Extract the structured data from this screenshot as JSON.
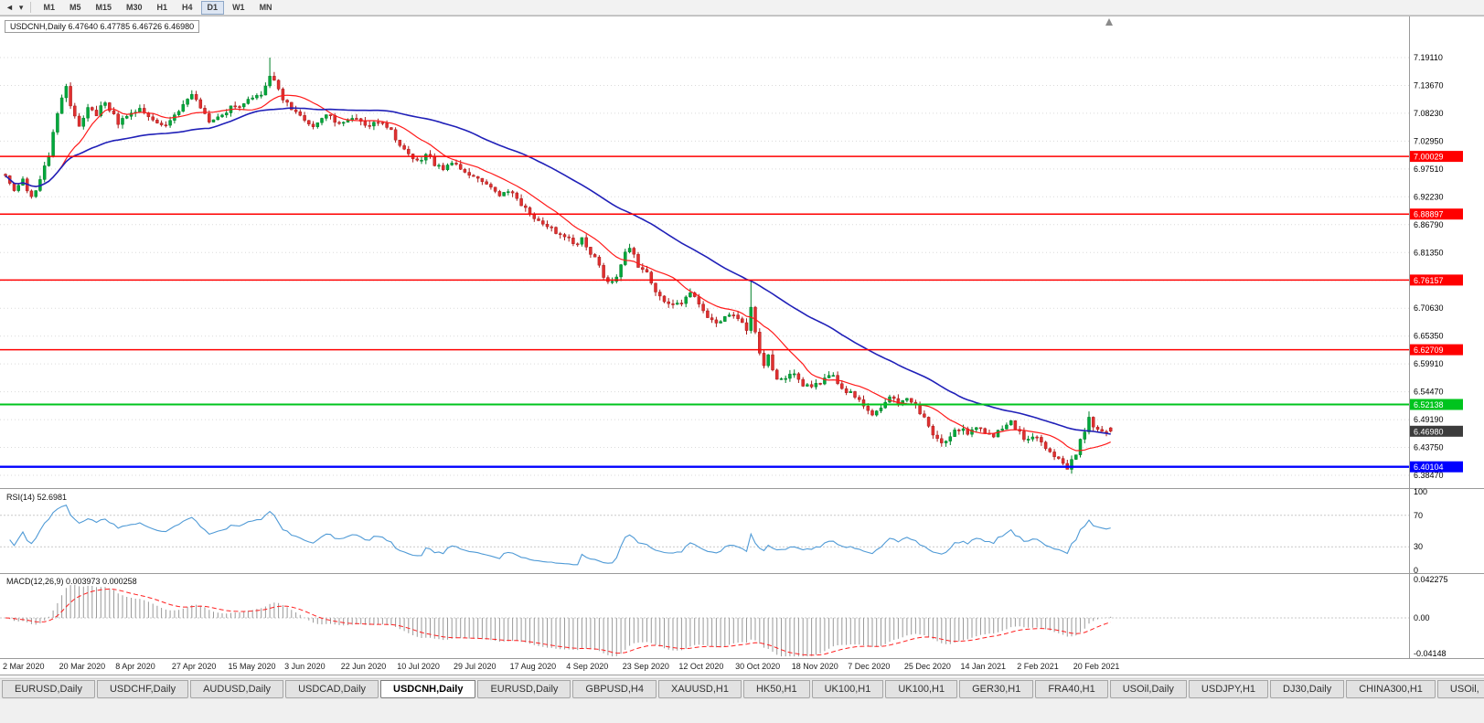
{
  "toolbar": {
    "timeframes": [
      "M1",
      "M5",
      "M15",
      "M30",
      "H1",
      "H4",
      "D1",
      "W1",
      "MN"
    ],
    "active_timeframe": "D1"
  },
  "chart_data": {
    "type": "candlestick",
    "title": "USDCNH,Daily 6.47640 6.47785 6.46726 6.46980",
    "symbol": "USDCNH",
    "period": "Daily",
    "ohlc": {
      "open": 6.4764,
      "high": 6.47785,
      "low": 6.46726,
      "close": 6.4698
    },
    "y_axis_labels": [
      "7.19110",
      "7.13670",
      "7.08230",
      "7.02950",
      "6.97510",
      "6.92230",
      "6.86790",
      "6.81350",
      "6.76060",
      "6.70630",
      "6.65350",
      "6.59910",
      "6.54470",
      "6.49190",
      "6.43750",
      "6.38470"
    ],
    "y_axis_top": 7.1911,
    "y_axis_bottom": 6.3847,
    "x_axis_labels": [
      "2 Mar 2020",
      "20 Mar 2020",
      "8 Apr 2020",
      "27 Apr 2020",
      "15 May 2020",
      "3 Jun 2020",
      "22 Jun 2020",
      "10 Jul 2020",
      "29 Jul 2020",
      "17 Aug 2020",
      "4 Sep 2020",
      "23 Sep 2020",
      "12 Oct 2020",
      "30 Oct 2020",
      "18 Nov 2020",
      "7 Dec 2020",
      "25 Dec 2020",
      "14 Jan 2021",
      "2 Feb 2021",
      "20 Feb 2021"
    ],
    "candles_per_x_label": 13,
    "candle_count": 256,
    "levels": [
      {
        "label": "7.00029",
        "value": 7.00029,
        "color": "#ff0000"
      },
      {
        "label": "6.88897",
        "value": 6.88897,
        "color": "#ff0000"
      },
      {
        "label": "6.76157",
        "value": 6.76157,
        "color": "#ff0000"
      },
      {
        "label": "6.62709",
        "value": 6.62709,
        "color": "#ff0000"
      },
      {
        "label": "6.52138",
        "value": 6.52138,
        "color": "#00c41e"
      },
      {
        "label": "6.40104",
        "value": 6.40104,
        "color": "#0000ff"
      }
    ],
    "current_price": {
      "label": "6.46980",
      "value": 6.4698,
      "tag_color": "#3c3c3c"
    },
    "colors": {
      "up": "#00a83c",
      "up_stroke": "#008028",
      "down": "#e03030",
      "down_stroke": "#a81c1c",
      "ma_fast": "#ff1a1a",
      "ma_slow": "#2020b8",
      "grid": "#dadada"
    },
    "moving_averages": [
      {
        "period": 13,
        "color_key": "ma_fast"
      },
      {
        "period": 48,
        "color_key": "ma_slow"
      }
    ],
    "price_path": [
      [
        0,
        6.962
      ],
      [
        2,
        6.938
      ],
      [
        4,
        6.952
      ],
      [
        6,
        6.918
      ],
      [
        8,
        6.958
      ],
      [
        10,
        7.005
      ],
      [
        12,
        7.085
      ],
      [
        14,
        7.135
      ],
      [
        15,
        7.1
      ],
      [
        17,
        7.062
      ],
      [
        19,
        7.092
      ],
      [
        21,
        7.082
      ],
      [
        23,
        7.108
      ],
      [
        26,
        7.066
      ],
      [
        28,
        7.078
      ],
      [
        31,
        7.094
      ],
      [
        34,
        7.068
      ],
      [
        36,
        7.056
      ],
      [
        39,
        7.078
      ],
      [
        41,
        7.098
      ],
      [
        43,
        7.122
      ],
      [
        45,
        7.094
      ],
      [
        47,
        7.066
      ],
      [
        50,
        7.079
      ],
      [
        52,
        7.094
      ],
      [
        55,
        7.1
      ],
      [
        57,
        7.112
      ],
      [
        59,
        7.124
      ],
      [
        61,
        7.152
      ],
      [
        62,
        7.142
      ],
      [
        64,
        7.108
      ],
      [
        66,
        7.094
      ],
      [
        68,
        7.076
      ],
      [
        71,
        7.06
      ],
      [
        74,
        7.078
      ],
      [
        77,
        7.068
      ],
      [
        80,
        7.074
      ],
      [
        83,
        7.06
      ],
      [
        86,
        7.068
      ],
      [
        89,
        7.052
      ],
      [
        91,
        7.022
      ],
      [
        93,
        7.0
      ],
      [
        95,
        6.992
      ],
      [
        97,
        7.004
      ],
      [
        99,
        6.986
      ],
      [
        101,
        6.976
      ],
      [
        103,
        6.988
      ],
      [
        105,
        6.974
      ],
      [
        108,
        6.958
      ],
      [
        111,
        6.944
      ],
      [
        114,
        6.926
      ],
      [
        117,
        6.93
      ],
      [
        119,
        6.908
      ],
      [
        122,
        6.884
      ],
      [
        125,
        6.868
      ],
      [
        127,
        6.854
      ],
      [
        129,
        6.846
      ],
      [
        131,
        6.83
      ],
      [
        133,
        6.84
      ],
      [
        135,
        6.814
      ],
      [
        137,
        6.788
      ],
      [
        139,
        6.756
      ],
      [
        141,
        6.772
      ],
      [
        143,
        6.814
      ],
      [
        144,
        6.824
      ],
      [
        146,
        6.79
      ],
      [
        148,
        6.774
      ],
      [
        150,
        6.744
      ],
      [
        152,
        6.72
      ],
      [
        154,
        6.71
      ],
      [
        156,
        6.716
      ],
      [
        158,
        6.734
      ],
      [
        160,
        6.718
      ],
      [
        162,
        6.694
      ],
      [
        164,
        6.676
      ],
      [
        166,
        6.69
      ],
      [
        168,
        6.698
      ],
      [
        170,
        6.678
      ],
      [
        171,
        6.66
      ],
      [
        172,
        6.708
      ],
      [
        173,
        6.658
      ],
      [
        174,
        6.618
      ],
      [
        175,
        6.6
      ],
      [
        176,
        6.612
      ],
      [
        177,
        6.586
      ],
      [
        178,
        6.566
      ],
      [
        180,
        6.572
      ],
      [
        182,
        6.578
      ],
      [
        184,
        6.56
      ],
      [
        186,
        6.552
      ],
      [
        188,
        6.566
      ],
      [
        190,
        6.58
      ],
      [
        192,
        6.566
      ],
      [
        194,
        6.546
      ],
      [
        196,
        6.536
      ],
      [
        198,
        6.522
      ],
      [
        200,
        6.506
      ],
      [
        202,
        6.52
      ],
      [
        204,
        6.536
      ],
      [
        206,
        6.526
      ],
      [
        208,
        6.538
      ],
      [
        210,
        6.52
      ],
      [
        212,
        6.492
      ],
      [
        214,
        6.462
      ],
      [
        216,
        6.442
      ],
      [
        218,
        6.462
      ],
      [
        220,
        6.476
      ],
      [
        222,
        6.466
      ],
      [
        224,
        6.48
      ],
      [
        226,
        6.47
      ],
      [
        228,
        6.456
      ],
      [
        230,
        6.478
      ],
      [
        232,
        6.49
      ],
      [
        234,
        6.466
      ],
      [
        236,
        6.452
      ],
      [
        238,
        6.458
      ],
      [
        240,
        6.44
      ],
      [
        242,
        6.418
      ],
      [
        244,
        6.406
      ],
      [
        245,
        6.401
      ],
      [
        247,
        6.428
      ],
      [
        248,
        6.452
      ],
      [
        249,
        6.468
      ],
      [
        250,
        6.498
      ],
      [
        251,
        6.476
      ],
      [
        252,
        6.468
      ],
      [
        253,
        6.474
      ],
      [
        254,
        6.471
      ],
      [
        255,
        6.4698
      ]
    ],
    "wick_spikes": [
      {
        "i": 61,
        "high": 7.1911
      },
      {
        "i": 172,
        "high": 6.7615
      },
      {
        "i": 245,
        "low": 6.3985
      },
      {
        "i": 250,
        "high": 6.508
      }
    ],
    "indicators": {
      "rsi": {
        "title": "RSI(14) 52.6981",
        "period": 14,
        "value": 52.6981,
        "axis_labels": [
          "100",
          "70",
          "30",
          "0"
        ],
        "axis_values": [
          100,
          70,
          30,
          0
        ],
        "level_lines": [
          70,
          30
        ],
        "line_color": "#4f9ad6"
      },
      "macd": {
        "title": "MACD(12,26,9) 0.003973 0.000258",
        "fast": 12,
        "slow": 26,
        "signal": 9,
        "values": [
          0.003973,
          0.000258
        ],
        "axis_labels": [
          "0.042275",
          "0.00",
          "-0.04148"
        ],
        "axis_values": [
          0.042275,
          0,
          -0.04148
        ],
        "histogram_color": "#9a9a9a",
        "signal_color": "#ff2020"
      }
    }
  },
  "tabs": {
    "items": [
      "EURUSD,Daily",
      "USDCHF,Daily",
      "AUDUSD,Daily",
      "USDCAD,Daily",
      "USDCNH,Daily",
      "EURUSD,Daily",
      "GBPUSD,H4",
      "XAUUSD,H1",
      "HK50,H1",
      "UK100,H1",
      "UK100,H1",
      "GER30,H1",
      "FRA40,H1",
      "USOil,Daily",
      "USDJPY,H1",
      "DJ30,Daily",
      "CHINA300,H1",
      "USOil,"
    ],
    "active_index": 4
  }
}
